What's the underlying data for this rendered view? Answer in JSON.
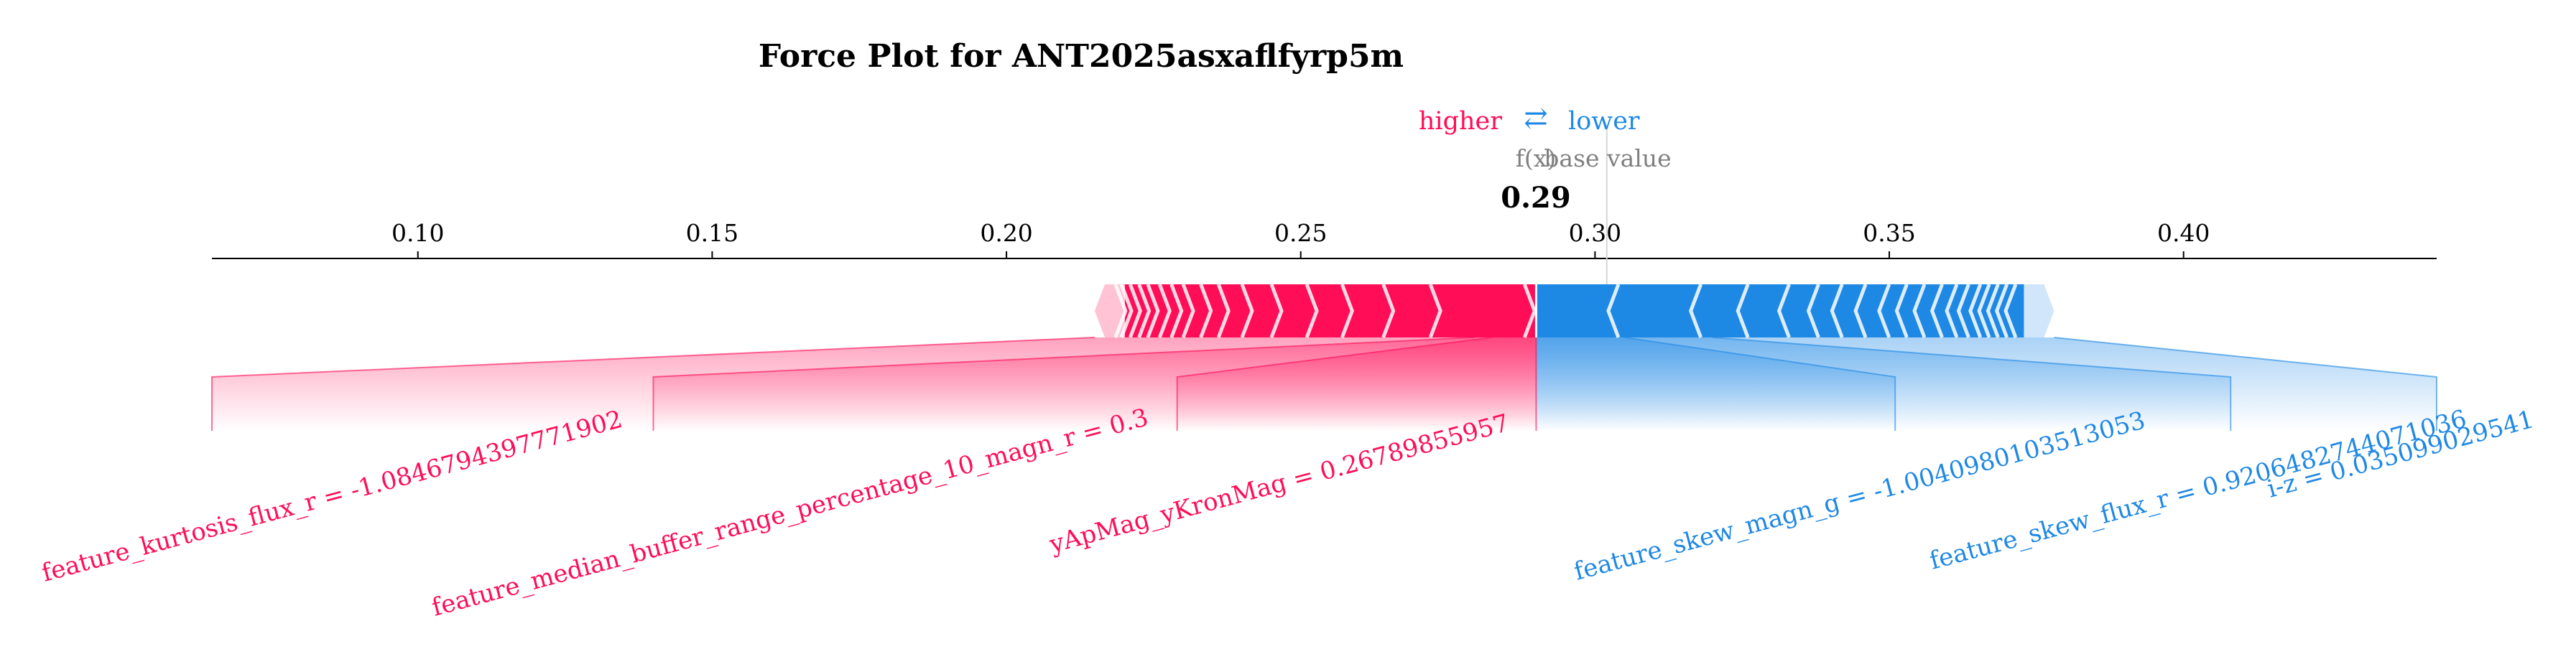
{
  "title": "Force Plot for ANT2025asxaflfyrp5m",
  "legend": {
    "higher_label": "higher",
    "arrow_glyph": "⇄",
    "lower_label": "lower",
    "fx_label": "f(x)",
    "base_value_label": "base value"
  },
  "colors": {
    "positive": "#ff0d57",
    "negative": "#1e88e5",
    "positive_light": "#ffc3d5",
    "negative_light": "#d1e6fa",
    "axis": "#000000",
    "muted_text": "#808080"
  },
  "chart_data": {
    "type": "force",
    "xlim": [
      0.065,
      0.443
    ],
    "ticks": [
      {
        "value": 0.1,
        "label": "0.10"
      },
      {
        "value": 0.15,
        "label": "0.15"
      },
      {
        "value": 0.2,
        "label": "0.20"
      },
      {
        "value": 0.25,
        "label": "0.25"
      },
      {
        "value": 0.3,
        "label": "0.30"
      },
      {
        "value": 0.35,
        "label": "0.35"
      },
      {
        "value": 0.4,
        "label": "0.40"
      }
    ],
    "fx_value": 0.29,
    "fx_label": "0.29",
    "base_value": 0.302,
    "positive_range": [
      0.215,
      0.29
    ],
    "negative_range": [
      0.29,
      0.378
    ],
    "positive_boundaries": [
      0.289,
      0.273,
      0.265,
      0.258,
      0.252,
      0.246,
      0.241,
      0.237,
      0.234,
      0.231,
      0.229,
      0.227,
      0.225,
      0.2235,
      0.222,
      0.2205,
      0.2195
    ],
    "negative_boundaries": [
      0.303,
      0.317,
      0.325,
      0.332,
      0.337,
      0.341,
      0.345,
      0.349,
      0.352,
      0.355,
      0.358,
      0.3605,
      0.3625,
      0.3645,
      0.366,
      0.3675,
      0.369,
      0.3705
    ],
    "positive_features": [
      {
        "label": "feature_kurtosis_flux_r = -1.0846794397771902",
        "segment": [
          0.215,
          0.2795
        ],
        "anchor": 0.065
      },
      {
        "label": "feature_median_buffer_range_percentage_10_magn_r = 0.3",
        "segment": [
          0.2795,
          0.2825
        ],
        "anchor": 0.14
      },
      {
        "label": "yApMag_yKronMag = 0.26789855957",
        "segment": [
          0.2825,
          0.29
        ],
        "anchor": 0.229
      }
    ],
    "negative_features": [
      {
        "label": "feature_skew_magn_g = -1.0040980103513053",
        "segment": [
          0.29,
          0.305
        ],
        "anchor": 0.351
      },
      {
        "label": "feature_skew_flux_r = 0.9206482744071036",
        "segment": [
          0.305,
          0.32
        ],
        "anchor": 0.408
      },
      {
        "label": "i-z = 0.035099029541",
        "segment": [
          0.32,
          0.378
        ],
        "anchor": 0.443
      }
    ]
  }
}
